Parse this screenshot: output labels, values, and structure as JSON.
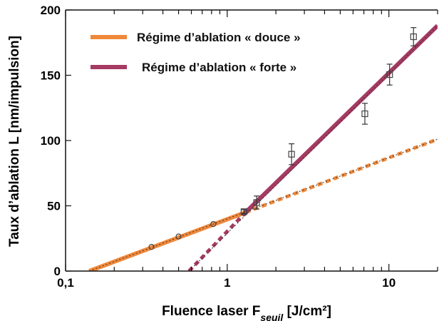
{
  "chart_data": {
    "type": "scatter",
    "x_scale": "log",
    "xlim": [
      0.1,
      20
    ],
    "ylim": [
      0,
      200
    ],
    "grid": false,
    "legend_position": "top-left",
    "xlabel": "Fluence laser F",
    "xlabel_sub": "seuil",
    "xlabel_unit": " [J/cm²]",
    "ylabel": "Taux d’ablation L [nm/impulsion]",
    "x_ticks": [
      {
        "value": 0.1,
        "label": "0,1"
      },
      {
        "value": 1,
        "label": "1"
      },
      {
        "value": 10,
        "label": "10"
      }
    ],
    "y_ticks": [
      {
        "value": 0,
        "label": "0"
      },
      {
        "value": 50,
        "label": "50"
      },
      {
        "value": 100,
        "label": "100"
      },
      {
        "value": 150,
        "label": "150"
      },
      {
        "value": 200,
        "label": "200"
      }
    ],
    "series": [
      {
        "name": "Régime d’ablation « douce »",
        "color": "#f0883a",
        "fit_x": [
          0.14,
          1.3
        ],
        "fit_y": [
          0,
          45
        ],
        "fit_extension_x": [
          1.3,
          20
        ],
        "fit_extension_y": [
          45,
          101
        ],
        "points": [
          {
            "x": 0.34,
            "y": 18.5
          },
          {
            "x": 0.5,
            "y": 26.5
          },
          {
            "x": 0.82,
            "y": 36
          }
        ]
      },
      {
        "name": "Régime d’ablation « forte »",
        "color": "#a63a62",
        "fit_x": [
          1.3,
          20
        ],
        "fit_y": [
          45,
          188
        ],
        "fit_extension_x": [
          0.58,
          1.3
        ],
        "fit_extension_y": [
          0,
          45
        ],
        "points": [
          {
            "x": 1.27,
            "y": 45.5,
            "err": 1.5
          },
          {
            "x": 1.52,
            "y": 52.5,
            "err": 5
          },
          {
            "x": 2.5,
            "y": 89.5,
            "err": 8
          },
          {
            "x": 7.1,
            "y": 120.5,
            "err": 8
          },
          {
            "x": 10.1,
            "y": 150.5,
            "err": 8
          },
          {
            "x": 14.2,
            "y": 179.5,
            "err": 7
          }
        ]
      }
    ]
  }
}
